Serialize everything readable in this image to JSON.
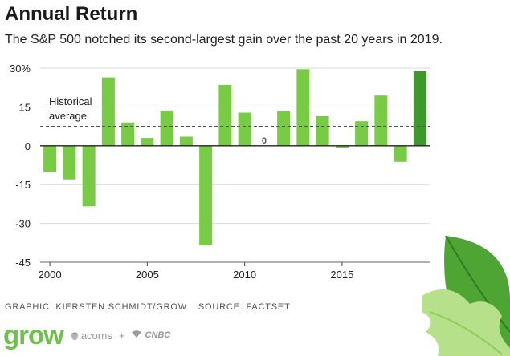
{
  "title": "Annual Return",
  "subtitle": "The S&P 500 notched its second-largest gain over the past 20 years in 2019.",
  "footer": {
    "graphic_credit": "GRAPHIC: KIERSTEN SCHMIDT/GROW",
    "source": "SOURCE: FACTSET"
  },
  "brand": {
    "grow": "grow",
    "acorns": "acorns",
    "plus": "+",
    "cnbc": "CNBC"
  },
  "colors": {
    "bar": "#77cc44",
    "bar_highlight": "#3d9a2a",
    "grid": "#d9d9d9",
    "zero_line": "#222222",
    "avg_line": "#555555"
  },
  "chart_data": {
    "type": "bar",
    "x": [
      2000,
      2001,
      2002,
      2003,
      2004,
      2005,
      2006,
      2007,
      2008,
      2009,
      2010,
      2011,
      2012,
      2013,
      2014,
      2015,
      2016,
      2017,
      2018,
      2019
    ],
    "values": [
      -10.1,
      -13.0,
      -23.4,
      26.4,
      9.0,
      3.0,
      13.6,
      3.5,
      -38.5,
      23.5,
      12.8,
      0.0,
      13.4,
      29.6,
      11.4,
      -0.7,
      9.5,
      19.4,
      -6.2,
      28.9
    ],
    "highlight": [
      2019
    ],
    "data_labels": [
      {
        "x": 2011,
        "text": "0"
      }
    ],
    "title": "",
    "xlabel": "",
    "ylabel": "",
    "ylim": [
      -45,
      30
    ],
    "yticks": [
      30,
      15,
      0,
      -15,
      -30,
      -45
    ],
    "ytick_labels": [
      "30%",
      "15",
      "0",
      "-15",
      "-30",
      "-45"
    ],
    "xticks": [
      2000,
      2005,
      2010,
      2015
    ],
    "xtick_labels": [
      "2000",
      "2005",
      "2010",
      "2015"
    ],
    "reference_line": {
      "value": 7.5,
      "label_lines": [
        "Historical",
        "average"
      ],
      "style": "dashed"
    },
    "grid": true
  }
}
